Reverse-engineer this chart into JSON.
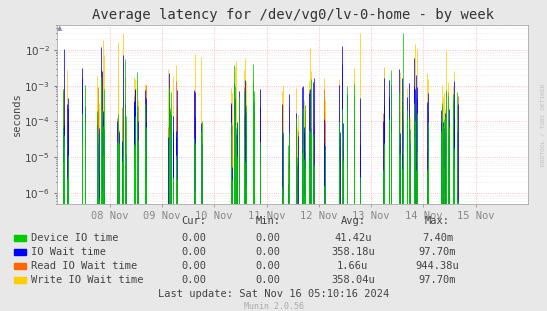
{
  "title": "Average latency for /dev/vg0/lv-0-home - by week",
  "ylabel": "seconds",
  "watermark": "RRDTOOL / TOBI OETIKER",
  "munin_version": "Munin 2.0.56",
  "last_update": "Last update: Sat Nov 16 05:10:16 2024",
  "x_tick_labels": [
    "08 Nov",
    "09 Nov",
    "10 Nov",
    "11 Nov",
    "12 Nov",
    "13 Nov",
    "14 Nov",
    "15 Nov"
  ],
  "background_color": "#e8e8e8",
  "plot_bg_color": "#ffffff",
  "grid_color": "#ffaaaa",
  "minor_grid_color": "#dddddd",
  "legend_items": [
    {
      "label": "Device IO time",
      "color": "#00cc00"
    },
    {
      "label": "IO Wait time",
      "color": "#0000ff"
    },
    {
      "label": "Read IO Wait time",
      "color": "#ff6600"
    },
    {
      "label": "Write IO Wait time",
      "color": "#ffcc00"
    }
  ],
  "table_headers": [
    "Cur:",
    "Min:",
    "Avg:",
    "Max:"
  ],
  "table_data": [
    [
      "0.00",
      "0.00",
      "41.42u",
      "7.40m"
    ],
    [
      "0.00",
      "0.00",
      "358.18u",
      "97.70m"
    ],
    [
      "0.00",
      "0.00",
      "1.66u",
      "944.38u"
    ],
    [
      "0.00",
      "0.00",
      "358.04u",
      "97.70m"
    ]
  ],
  "title_fontsize": 10,
  "axis_label_fontsize": 7.5,
  "tick_fontsize": 7.5,
  "legend_fontsize": 7.5
}
